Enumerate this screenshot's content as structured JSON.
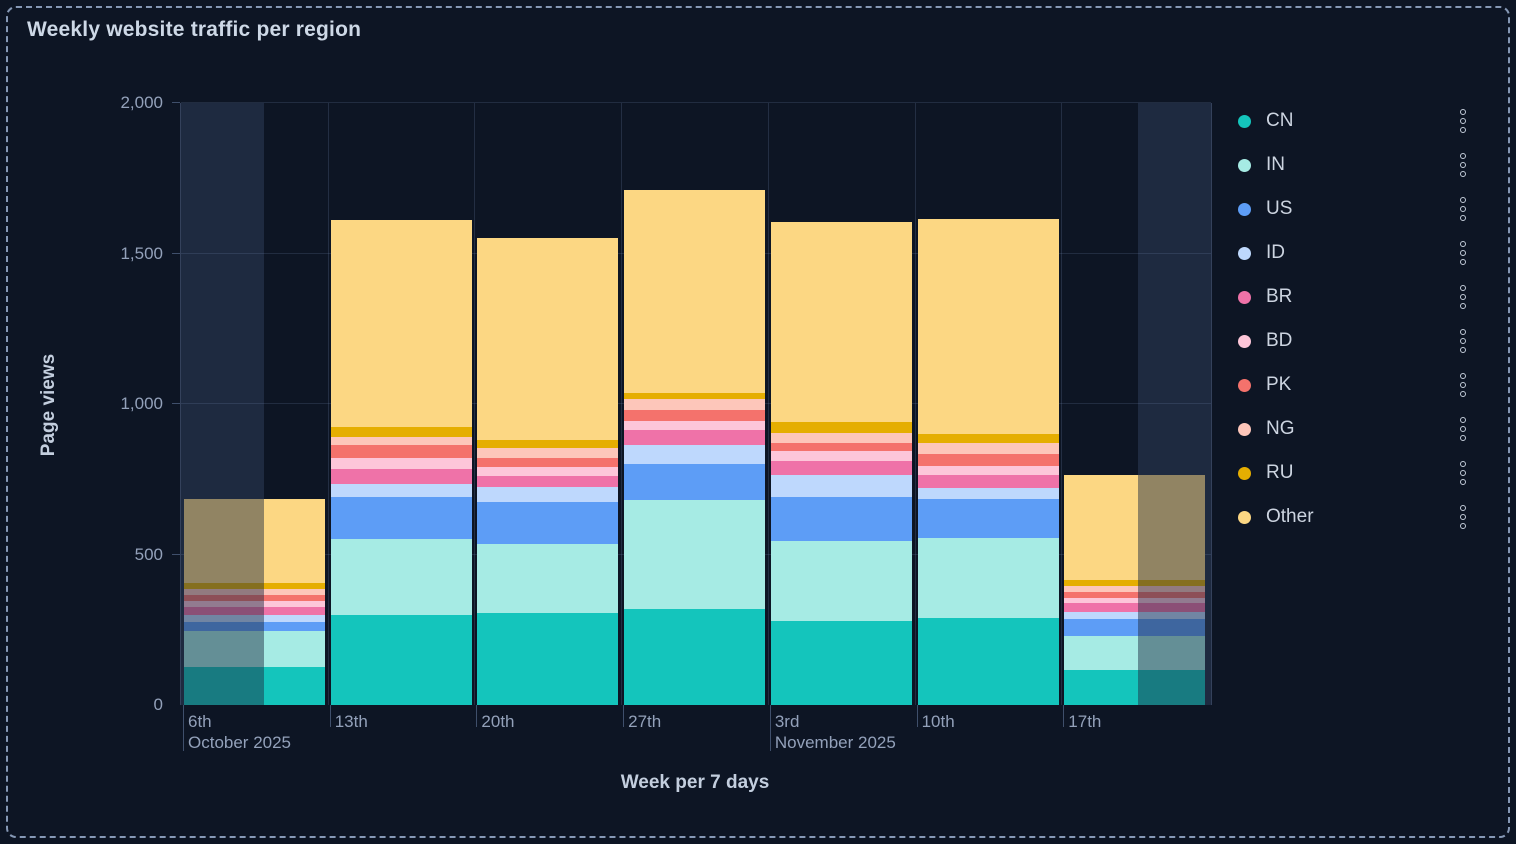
{
  "panel": {
    "title": "Weekly website traffic per region",
    "border_color": "#9cafcf",
    "background_color": "#0d1524"
  },
  "chart_data": {
    "type": "bar",
    "stacked": true,
    "title": "Weekly website traffic per region",
    "xlabel": "Week per 7 days",
    "ylabel": "Page views",
    "categories": [
      "6th",
      "13th",
      "20th",
      "27th",
      "3rd",
      "10th",
      "17th"
    ],
    "month_captions": [
      {
        "category_index": 0,
        "label": "October 2025"
      },
      {
        "category_index": 4,
        "label": "November 2025"
      }
    ],
    "series": [
      {
        "name": "CN",
        "color": "#14c5bc",
        "values": [
          125,
          300,
          305,
          320,
          280,
          290,
          115
        ]
      },
      {
        "name": "IN",
        "color": "#a6ebe4",
        "values": [
          120,
          250,
          230,
          360,
          265,
          265,
          115
        ]
      },
      {
        "name": "US",
        "color": "#5d9df6",
        "values": [
          30,
          140,
          140,
          120,
          145,
          130,
          55
        ]
      },
      {
        "name": "ID",
        "color": "#bed8fd",
        "values": [
          25,
          45,
          50,
          65,
          75,
          35,
          25
        ]
      },
      {
        "name": "BR",
        "color": "#ef72a8",
        "values": [
          25,
          50,
          35,
          50,
          45,
          45,
          30
        ]
      },
      {
        "name": "BD",
        "color": "#fdc6d9",
        "values": [
          20,
          35,
          30,
          30,
          35,
          30,
          15
        ]
      },
      {
        "name": "PK",
        "color": "#f4726c",
        "values": [
          20,
          45,
          30,
          35,
          25,
          40,
          20
        ]
      },
      {
        "name": "NG",
        "color": "#fdc6ba",
        "values": [
          20,
          25,
          35,
          35,
          35,
          35,
          20
        ]
      },
      {
        "name": "RU",
        "color": "#e5ae01",
        "values": [
          20,
          35,
          25,
          20,
          35,
          30,
          20
        ]
      },
      {
        "name": "Other",
        "color": "#fcd783",
        "values": [
          280,
          685,
          670,
          675,
          665,
          715,
          350
        ]
      }
    ],
    "ylim": [
      0,
      2000
    ],
    "y_ticks": [
      {
        "value": 0,
        "label": "0"
      },
      {
        "value": 500,
        "label": "500"
      },
      {
        "value": 1000,
        "label": "1,000"
      },
      {
        "value": 1500,
        "label": "1,500"
      },
      {
        "value": 2000,
        "label": "2,000"
      }
    ],
    "grid": true,
    "legend_position": "right",
    "out_of_range_dim": [
      {
        "category_index": 0,
        "side": "left",
        "fraction": 0.57
      },
      {
        "category_index": 6,
        "side": "right",
        "fraction": 0.48
      }
    ]
  }
}
